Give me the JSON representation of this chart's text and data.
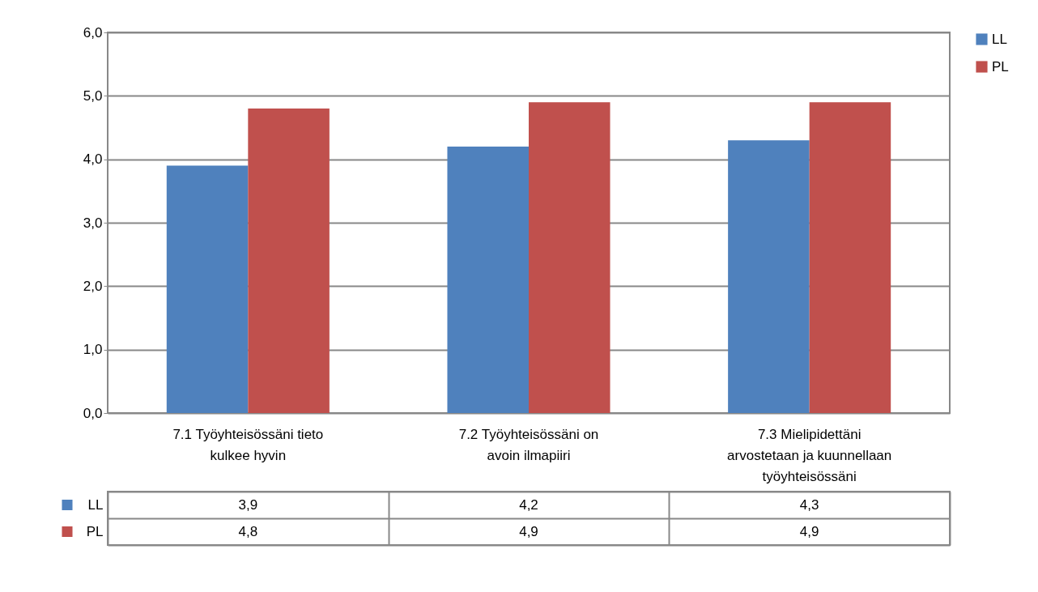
{
  "chart_data": {
    "type": "bar",
    "categories": [
      "7.1 Työyhteisössäni tieto kulkee hyvin",
      "7.2 Työyhteisössäni on avoin ilmapiiri",
      "7.3 Mielipidettäni arvostetaan ja kuunnellaan työyhteisössäni"
    ],
    "series": [
      {
        "name": "LL",
        "color": "#4f81bd",
        "values": [
          3.9,
          4.2,
          4.3
        ],
        "value_labels": [
          "3,9",
          "4,2",
          "4,3"
        ]
      },
      {
        "name": "PL",
        "color": "#c0504d",
        "values": [
          4.8,
          4.9,
          4.9
        ],
        "value_labels": [
          "4,8",
          "4,9",
          "4,9"
        ]
      }
    ],
    "ylim": [
      0,
      6
    ],
    "yticks": [
      {
        "value": 0,
        "label": "0,0"
      },
      {
        "value": 1,
        "label": "1,0"
      },
      {
        "value": 2,
        "label": "2,0"
      },
      {
        "value": 3,
        "label": "3,0"
      },
      {
        "value": 4,
        "label": "4,0"
      },
      {
        "value": 5,
        "label": "5,0"
      },
      {
        "value": 6,
        "label": "6,0"
      }
    ],
    "grid": "y",
    "legend": "right"
  }
}
